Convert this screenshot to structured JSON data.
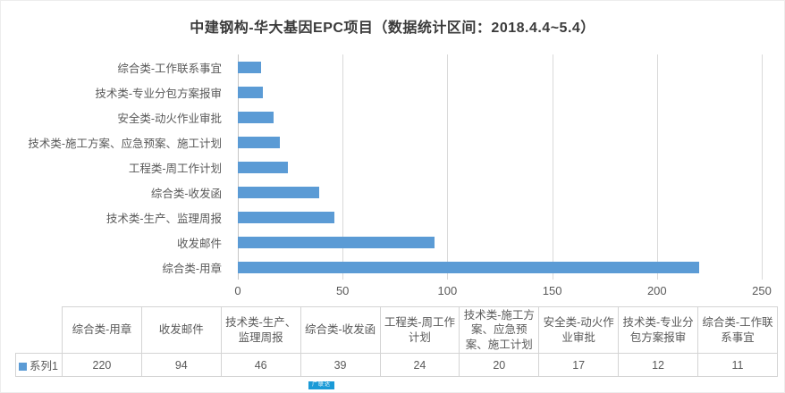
{
  "title": "中建钢构-华大基因EPC项目（数据统计区间：2018.4.4~5.4）",
  "chart_data": {
    "type": "bar",
    "orientation": "horizontal",
    "title": "中建钢构-华大基因EPC项目（数据统计区间：2018.4.4~5.4）",
    "categories": [
      "综合类-用章",
      "收发邮件",
      "技术类-生产、监理周报",
      "综合类-收发函",
      "工程类-周工作计划",
      "技术类-施工方案、应急预案、施工计划",
      "安全类-动火作业审批",
      "技术类-专业分包方案报审",
      "综合类-工作联系事宜"
    ],
    "series": [
      {
        "name": "系列1",
        "values": [
          220,
          94,
          46,
          39,
          24,
          20,
          17,
          12,
          11
        ]
      }
    ],
    "xlim": [
      0,
      250
    ],
    "x_ticks": [
      0,
      50,
      100,
      150,
      200,
      250
    ],
    "grid": true,
    "row_order": "largest value at bottom of plot (smallest at top)",
    "legend_position": "data-table-row-header",
    "data_table_shown": true
  },
  "watermark": {
    "text": "广联达"
  },
  "colors": {
    "bar": "#5B9BD5",
    "gridline": "#D9D9D9",
    "axis_line": "#C6C6C6",
    "axis_text": "#595959",
    "title_text": "#3A3A3A",
    "table_border": "#D4D4D4",
    "table_text": "#595959",
    "watermark_bg": "#1A9AD7"
  }
}
